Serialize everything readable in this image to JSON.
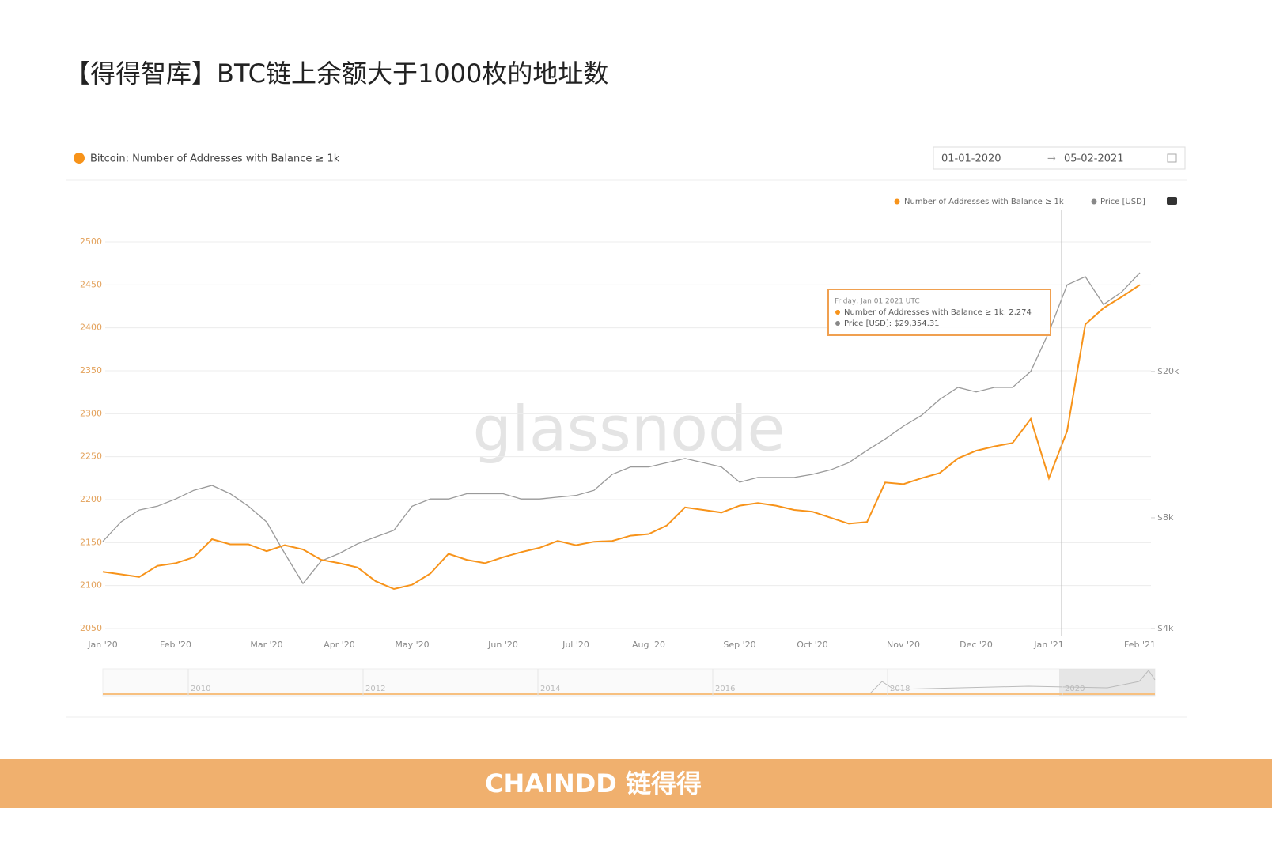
{
  "page_title": "【得得智库】BTC链上余额大于1000枚的地址数",
  "chart_data": {
    "type": "line",
    "title": "Bitcoin: Number of Addresses with Balance ≥ 1k",
    "date_from": "01-01-2020",
    "date_to": "05-02-2021",
    "watermark": "glassnode",
    "categories": [
      "Jan '20",
      null,
      null,
      null,
      "Feb '20",
      null,
      null,
      null,
      null,
      "Mar '20",
      null,
      null,
      null,
      "Apr '20",
      null,
      null,
      null,
      "May '20",
      null,
      null,
      null,
      null,
      "Jun '20",
      null,
      null,
      null,
      "Jul '20",
      null,
      null,
      null,
      "Aug '20",
      null,
      null,
      null,
      null,
      "Sep '20",
      null,
      null,
      null,
      "Oct '20",
      null,
      null,
      null,
      null,
      "Nov '20",
      null,
      null,
      null,
      "Dec '20",
      null,
      null,
      null,
      "Jan '21",
      null,
      null,
      null,
      null,
      "Feb '21"
    ],
    "series": [
      {
        "name": "Number of Addresses with Balance ≥ 1k",
        "color": "#f7931a",
        "values": [
          2116,
          2113,
          2110,
          2123,
          2126,
          2133,
          2154,
          2148,
          2148,
          2140,
          2147,
          2142,
          2130,
          2126,
          2121,
          2105,
          2096,
          2101,
          2114,
          2137,
          2130,
          2126,
          2133,
          2139,
          2144,
          2152,
          2147,
          2151,
          2152,
          2158,
          2160,
          2170,
          2191,
          2188,
          2185,
          2193,
          2196,
          2193,
          2188,
          2186,
          2179,
          2172,
          2174,
          2220,
          2218,
          2225,
          2231,
          2248,
          2257,
          2262,
          2266,
          2294,
          2225,
          2280,
          2404,
          2423,
          2436,
          2450
        ]
      },
      {
        "name": "Price [USD]",
        "color": "#9a9a9a",
        "axis": "y2",
        "values": [
          6900,
          7800,
          8400,
          8600,
          9000,
          9500,
          9800,
          9300,
          8600,
          7800,
          6400,
          5300,
          6100,
          6400,
          6800,
          7100,
          7400,
          8600,
          9000,
          9000,
          9300,
          9300,
          9300,
          9000,
          9000,
          9100,
          9200,
          9500,
          10500,
          11000,
          11000,
          11300,
          11600,
          11300,
          11000,
          10000,
          10300,
          10300,
          10300,
          10500,
          10800,
          11300,
          12200,
          13100,
          14200,
          15200,
          16800,
          18100,
          17600,
          18100,
          18100,
          20000,
          25600,
          34400,
          36200,
          30400,
          32900,
          37100
        ]
      }
    ],
    "ylim": [
      2050,
      2500
    ],
    "yticks": [
      2050,
      2100,
      2150,
      2200,
      2250,
      2300,
      2350,
      2400,
      2450,
      2500
    ],
    "y2lim": [
      4000,
      45000
    ],
    "y2scale": "log",
    "y2ticks": [
      {
        "value": 4000,
        "label": "$4k"
      },
      {
        "value": 8000,
        "label": "$8k"
      },
      {
        "value": 20000,
        "label": "$20k"
      }
    ],
    "grid": true,
    "legend": "top-right",
    "tooltip": [
      "Friday, Jan 01 2021 UTC",
      "Number of Addresses with Balance ≥ 1k: 2,274",
      "Price [USD]: $29,354.31"
    ],
    "navigator_labels": [
      "2010",
      "2012",
      "2014",
      "2016",
      "2018",
      "2020"
    ]
  },
  "footer": "CHAINDD 链得得"
}
